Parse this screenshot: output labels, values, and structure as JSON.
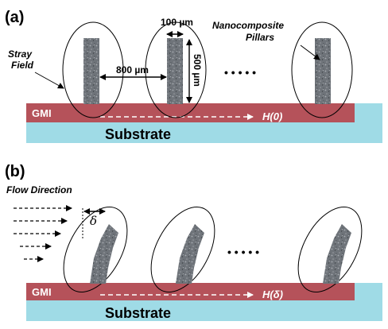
{
  "panel_a": {
    "label": "(a)",
    "stray_field_line1": "Stray",
    "stray_field_line2": "Field",
    "pillar_width": "100 µm",
    "pillar_spacing": "800 µm",
    "pillar_height": "500 µm",
    "nanocomposite_line1": "Nanocomposite",
    "nanocomposite_line2": "Pillars",
    "ellipsis": "• • • • •",
    "gmi_label": "GMI",
    "field_label": "H(0)",
    "substrate_label": "Substrate"
  },
  "panel_b": {
    "label": "(b)",
    "flow_direction": "Flow Direction",
    "delta": "δ",
    "ellipsis": "• • • • •",
    "gmi_label": "GMI",
    "field_label": "H(δ)",
    "substrate_label": "Substrate"
  },
  "colors": {
    "substrate": "#9fdbe6",
    "gmi": "#b5525a",
    "pillar": "#6f747a",
    "pillar_speckle": "#a9adb2"
  }
}
